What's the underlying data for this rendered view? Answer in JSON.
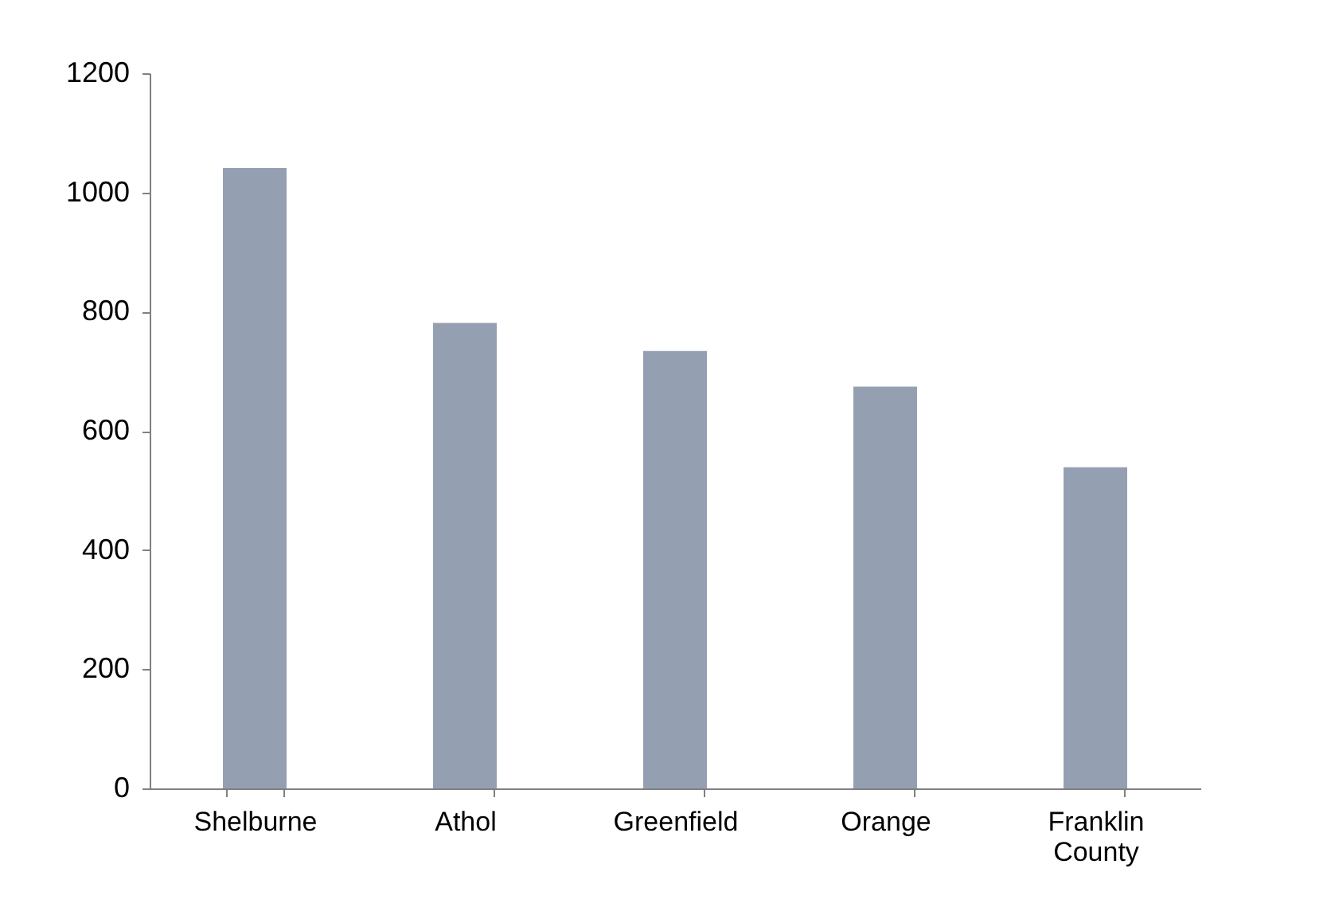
{
  "chart_data": {
    "type": "bar",
    "categories": [
      "Shelburne",
      "Athol",
      "Greenfield",
      "Orange",
      "Franklin County"
    ],
    "values": [
      1041,
      781,
      734,
      674,
      539
    ],
    "color": "#94a0b2",
    "ylim": [
      0,
      1200
    ],
    "yticks": [
      0,
      200,
      400,
      600,
      800,
      1000,
      1200
    ],
    "grid": false
  }
}
